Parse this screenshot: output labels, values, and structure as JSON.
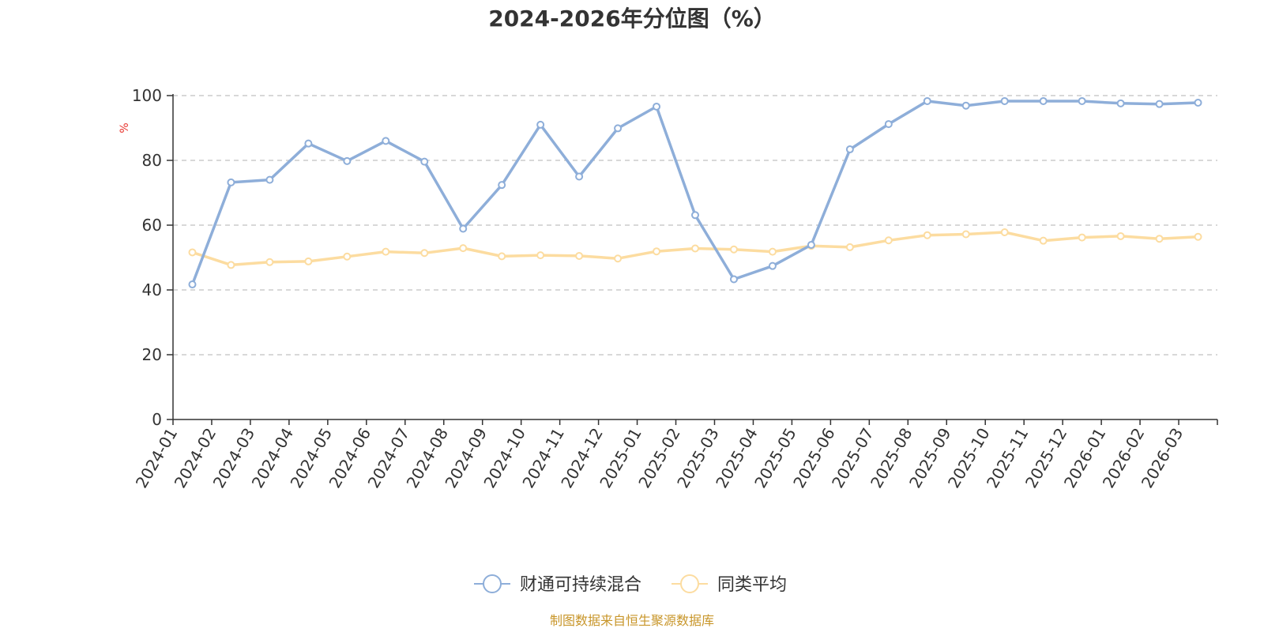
{
  "chart_data": {
    "type": "line",
    "title": "2024-2026年分位图（%）",
    "ylabel": "%",
    "ylim": [
      0,
      100
    ],
    "yticks": [
      0,
      20,
      40,
      60,
      80,
      100
    ],
    "grid": true,
    "legend_placement": "bottom-center",
    "categories": [
      "2024-01",
      "2024-02",
      "2024-03",
      "2024-04",
      "2024-05",
      "2024-06",
      "2024-07",
      "2024-08",
      "2024-09",
      "2024-10",
      "2024-11",
      "2024-12",
      "2025-01",
      "2025-02",
      "2025-03",
      "2025-04",
      "2025-05",
      "2025-06",
      "2025-07",
      "2025-08",
      "2025-09",
      "2025-10",
      "2025-11",
      "2025-12",
      "2026-01",
      "2026-02",
      "2026-03"
    ],
    "series": [
      {
        "name": "财通可持续混合",
        "color": "#8eaed9",
        "values": [
          41.7,
          73.2,
          74.0,
          85.2,
          79.8,
          86.0,
          79.6,
          58.9,
          72.4,
          91.0,
          75.0,
          89.9,
          96.6,
          63.1,
          43.3,
          47.4,
          53.9,
          83.4,
          91.2,
          98.3,
          96.9,
          98.3,
          98.3,
          98.3,
          97.6,
          97.4,
          97.8
        ]
      },
      {
        "name": "同类平均",
        "color": "#fcdca0",
        "values": [
          51.6,
          47.7,
          48.6,
          48.8,
          50.3,
          51.8,
          51.4,
          52.9,
          50.4,
          50.7,
          50.5,
          49.7,
          51.9,
          52.8,
          52.5,
          51.8,
          53.6,
          53.2,
          55.3,
          56.9,
          57.2,
          57.8,
          55.2,
          56.2,
          56.6,
          55.8,
          56.4
        ]
      }
    ]
  },
  "footer": {
    "source": "制图数据来自恒生聚源数据库"
  }
}
